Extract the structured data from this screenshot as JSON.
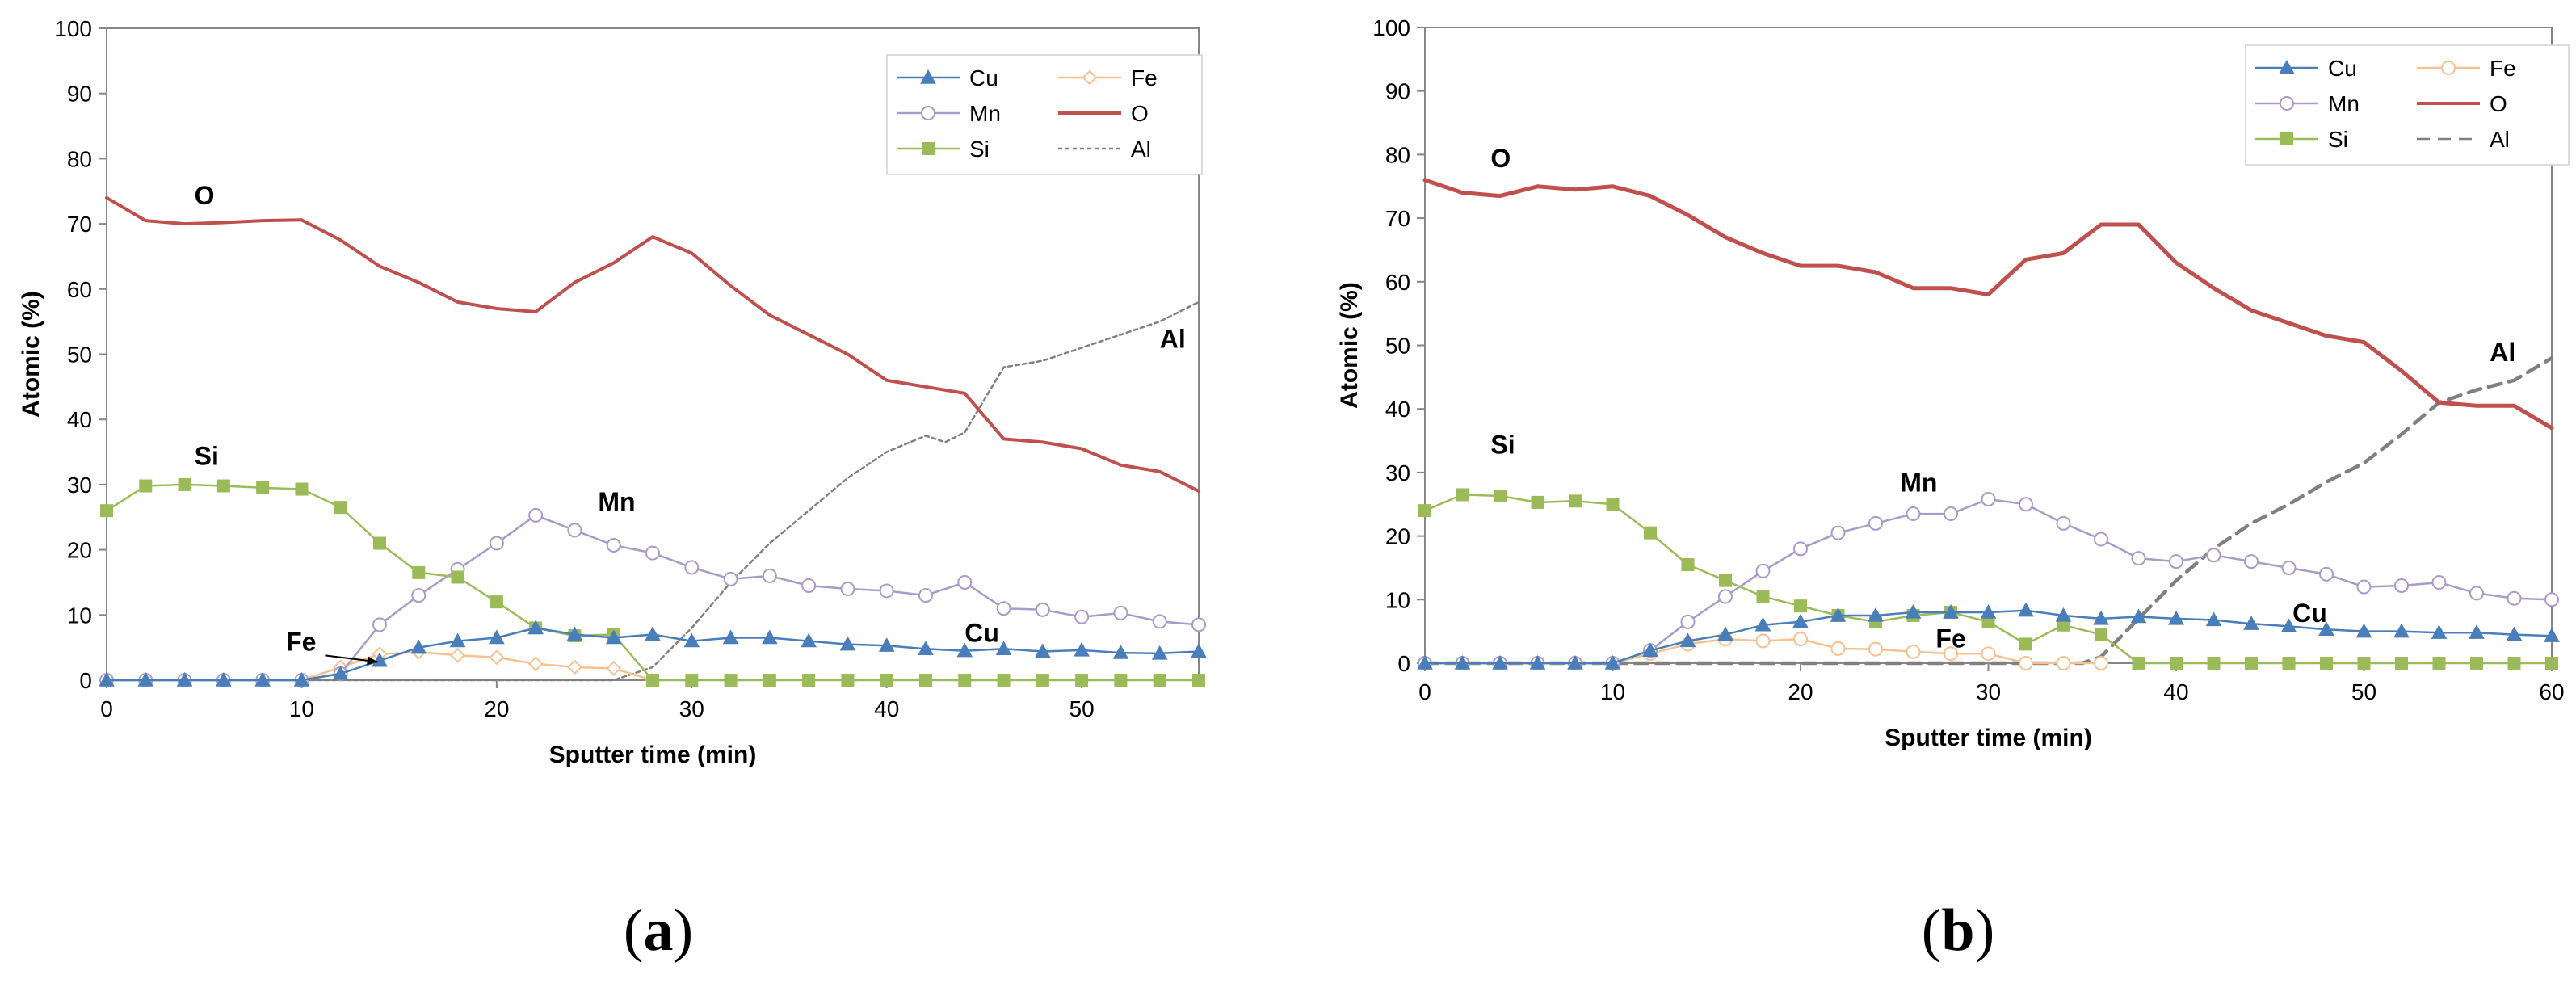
{
  "chart_data": [
    {
      "type": "line",
      "panel_label": "a",
      "xlabel": "Sputter time (min)",
      "ylabel": "Atomic (%)",
      "xlim": [
        0,
        56
      ],
      "ylim": [
        0,
        100
      ],
      "xticks": [
        0,
        10,
        20,
        30,
        40,
        50
      ],
      "yticks": [
        0,
        10,
        20,
        30,
        40,
        50,
        60,
        70,
        80,
        90,
        100
      ],
      "legend_position": "top-right",
      "series": [
        {
          "name": "Cu",
          "color": "#4a7ebb",
          "marker": "triangle",
          "dash": "solid",
          "x": [
            0,
            2,
            4,
            6,
            8,
            10,
            12,
            14,
            16,
            18,
            20,
            22,
            24,
            26,
            28,
            30,
            32,
            34,
            36,
            38,
            40,
            42,
            44,
            46,
            48,
            50,
            52,
            54,
            56
          ],
          "y": [
            0,
            0,
            0,
            0,
            0,
            0,
            1,
            3,
            5,
            6,
            6.5,
            8,
            7,
            6.5,
            7,
            6,
            6.5,
            6.5,
            6,
            5.5,
            5.3,
            4.8,
            4.5,
            4.8,
            4.4,
            4.6,
            4.2,
            4.1,
            4.4
          ]
        },
        {
          "name": "Fe",
          "color": "#f9c08f",
          "marker": "diamond-open",
          "dash": "solid",
          "x": [
            0,
            2,
            4,
            6,
            8,
            10,
            12,
            14,
            16,
            18,
            20,
            22,
            24,
            26,
            28
          ],
          "y": [
            0,
            0,
            0,
            0,
            0,
            0,
            2,
            4,
            4.3,
            3.8,
            3.5,
            2.5,
            2,
            1.8,
            0
          ]
        },
        {
          "name": "Mn",
          "color": "#a99bc9",
          "marker": "circle-open",
          "dash": "solid",
          "x": [
            0,
            2,
            4,
            6,
            8,
            10,
            12,
            14,
            16,
            18,
            20,
            22,
            24,
            26,
            28,
            30,
            32,
            34,
            36,
            38,
            40,
            42,
            44,
            46,
            48,
            50,
            52,
            54,
            56
          ],
          "y": [
            0,
            0,
            0,
            0,
            0,
            0,
            1,
            8.5,
            13,
            17,
            21,
            25.3,
            23,
            20.7,
            19.5,
            17.3,
            15.5,
            16,
            14.5,
            14,
            13.7,
            13,
            15,
            11,
            10.8,
            9.7,
            10.3,
            9,
            8.5
          ]
        },
        {
          "name": "O",
          "color": "#c0504d",
          "marker": "none",
          "dash": "solid",
          "x": [
            0,
            2,
            4,
            6,
            8,
            10,
            12,
            14,
            16,
            18,
            20,
            22,
            24,
            26,
            28,
            30,
            32,
            34,
            36,
            38,
            40,
            42,
            44,
            46,
            48,
            50,
            52,
            54,
            56
          ],
          "y": [
            74,
            70.5,
            70,
            70.2,
            70.5,
            70.6,
            67.5,
            63.5,
            61,
            58,
            57,
            56.5,
            61,
            64,
            68,
            65.5,
            60.5,
            56,
            53,
            50,
            46,
            45,
            44,
            37,
            36.5,
            35.5,
            33,
            32,
            29
          ]
        },
        {
          "name": "Si",
          "color": "#9bbb59",
          "marker": "square",
          "dash": "solid",
          "x": [
            0,
            2,
            4,
            6,
            8,
            10,
            12,
            14,
            16,
            18,
            20,
            22,
            24,
            26,
            28,
            30,
            32,
            34,
            36,
            38,
            40,
            42,
            44,
            46,
            48,
            50,
            52,
            54,
            56
          ],
          "y": [
            26,
            29.8,
            30,
            29.8,
            29.5,
            29.3,
            26.5,
            21,
            16.5,
            15.8,
            12,
            8,
            6.8,
            7,
            0,
            0,
            0,
            0,
            0,
            0,
            0,
            0,
            0,
            0,
            0,
            0,
            0,
            0,
            0
          ]
        },
        {
          "name": "Al",
          "color": "#808080",
          "marker": "none",
          "dash": "dotted",
          "x": [
            0,
            26,
            28,
            30,
            32,
            34,
            36,
            38,
            40,
            42,
            43,
            44,
            46,
            48,
            50,
            52,
            54,
            56
          ],
          "y": [
            0,
            0,
            2,
            8,
            15,
            21,
            26,
            31,
            35,
            37.5,
            36.5,
            38,
            48,
            49,
            51,
            53,
            55,
            58
          ]
        }
      ],
      "annotations": [
        {
          "text": "O",
          "x": 4.5,
          "y": 73
        },
        {
          "text": "Si",
          "x": 4.5,
          "y": 33
        },
        {
          "text": "Mn",
          "x": 25.2,
          "y": 26
        },
        {
          "text": "Fe",
          "x": 9.2,
          "y": 4.5
        },
        {
          "text": "Cu",
          "x": 44,
          "y": 5.9
        },
        {
          "text": "Al",
          "x": 54,
          "y": 51
        }
      ]
    },
    {
      "type": "line",
      "panel_label": "b",
      "xlabel": "Sputter time (min)",
      "ylabel": "Atomic (%)",
      "xlim": [
        0,
        60
      ],
      "ylim": [
        0,
        100
      ],
      "xticks": [
        0,
        10,
        20,
        30,
        40,
        50,
        60
      ],
      "yticks": [
        0,
        10,
        20,
        30,
        40,
        50,
        60,
        70,
        80,
        90,
        100
      ],
      "legend_position": "top-right",
      "series": [
        {
          "name": "Cu",
          "color": "#4a7ebb",
          "marker": "triangle",
          "dash": "solid",
          "x": [
            0,
            2,
            4,
            6,
            8,
            10,
            12,
            14,
            16,
            18,
            20,
            22,
            24,
            26,
            28,
            30,
            32,
            34,
            36,
            38,
            40,
            42,
            44,
            46,
            48,
            50,
            52,
            54,
            56,
            58,
            60
          ],
          "y": [
            0,
            0,
            0,
            0,
            0,
            0,
            2,
            3.5,
            4.5,
            6,
            6.5,
            7.5,
            7.5,
            8,
            8,
            8,
            8.3,
            7.5,
            7,
            7.3,
            7,
            6.8,
            6.2,
            5.8,
            5.3,
            5,
            5,
            4.8,
            4.8,
            4.5,
            4.3
          ]
        },
        {
          "name": "Fe",
          "color": "#f9c08f",
          "marker": "circle-open",
          "dash": "solid",
          "x": [
            0,
            2,
            4,
            6,
            8,
            10,
            12,
            14,
            16,
            18,
            20,
            22,
            24,
            26,
            28,
            30,
            32,
            34,
            36
          ],
          "y": [
            0,
            0,
            0,
            0,
            0,
            0,
            1.5,
            3,
            3.8,
            3.5,
            3.8,
            2.3,
            2.2,
            1.8,
            1.5,
            1.5,
            0,
            0,
            0
          ]
        },
        {
          "name": "Mn",
          "color": "#a99bc9",
          "marker": "circle-open",
          "dash": "solid",
          "x": [
            0,
            2,
            4,
            6,
            8,
            10,
            12,
            14,
            16,
            18,
            20,
            22,
            24,
            26,
            28,
            30,
            32,
            34,
            36,
            38,
            40,
            42,
            44,
            46,
            48,
            50,
            52,
            54,
            56,
            58,
            60
          ],
          "y": [
            0,
            0,
            0,
            0,
            0,
            0,
            2,
            6.5,
            10.5,
            14.5,
            18,
            20.5,
            22,
            23.5,
            23.5,
            25.8,
            25,
            22,
            19.5,
            16.5,
            16,
            17,
            16,
            15,
            14,
            12,
            12.2,
            12.7,
            11,
            10.2,
            10
          ]
        },
        {
          "name": "O",
          "color": "#c0504d",
          "marker": "none",
          "dash": "solid",
          "x": [
            0,
            2,
            4,
            6,
            8,
            10,
            12,
            14,
            16,
            18,
            20,
            22,
            24,
            26,
            28,
            30,
            32,
            34,
            36,
            38,
            40,
            42,
            44,
            46,
            48,
            50,
            52,
            54,
            56,
            58,
            60
          ],
          "y": [
            76,
            74,
            73.5,
            75,
            74.5,
            75,
            73.5,
            70.5,
            67,
            64.5,
            62.5,
            62.5,
            61.5,
            59,
            59,
            58,
            63.5,
            64.5,
            69,
            69,
            63,
            59,
            55.5,
            53.5,
            51.5,
            50.5,
            46,
            41,
            40.5,
            40.5,
            37
          ]
        },
        {
          "name": "Si",
          "color": "#9bbb59",
          "marker": "square",
          "dash": "solid",
          "x": [
            0,
            2,
            4,
            6,
            8,
            10,
            12,
            14,
            16,
            18,
            20,
            22,
            24,
            26,
            28,
            30,
            32,
            34,
            36,
            38,
            40,
            42,
            44,
            46,
            48,
            50,
            52,
            54,
            56,
            58,
            60
          ],
          "y": [
            24,
            26.5,
            26.3,
            25.3,
            25.5,
            25,
            20.5,
            15.5,
            13,
            10.5,
            9,
            7.5,
            6.5,
            7.5,
            8,
            6.5,
            3,
            6,
            4.5,
            0,
            0,
            0,
            0,
            0,
            0,
            0,
            0,
            0,
            0,
            0,
            0
          ]
        },
        {
          "name": "Al",
          "color": "#808080",
          "marker": "none",
          "dash": "dashed",
          "x": [
            0,
            35,
            36,
            38,
            40,
            42,
            44,
            46,
            48,
            50,
            52,
            54,
            56,
            58,
            60
          ],
          "y": [
            0,
            0,
            1,
            7,
            13,
            18,
            22,
            25,
            28.5,
            31.5,
            36,
            41,
            43,
            44.5,
            48
          ]
        }
      ],
      "annotations": [
        {
          "text": "O",
          "x": 3.5,
          "y": 78
        },
        {
          "text": "Si",
          "x": 3.5,
          "y": 33
        },
        {
          "text": "Mn",
          "x": 25.3,
          "y": 27
        },
        {
          "text": "Fe",
          "x": 27.2,
          "y": 2.5
        },
        {
          "text": "Cu",
          "x": 46.2,
          "y": 6.5
        },
        {
          "text": "Al",
          "x": 56.7,
          "y": 47.5
        }
      ]
    }
  ]
}
